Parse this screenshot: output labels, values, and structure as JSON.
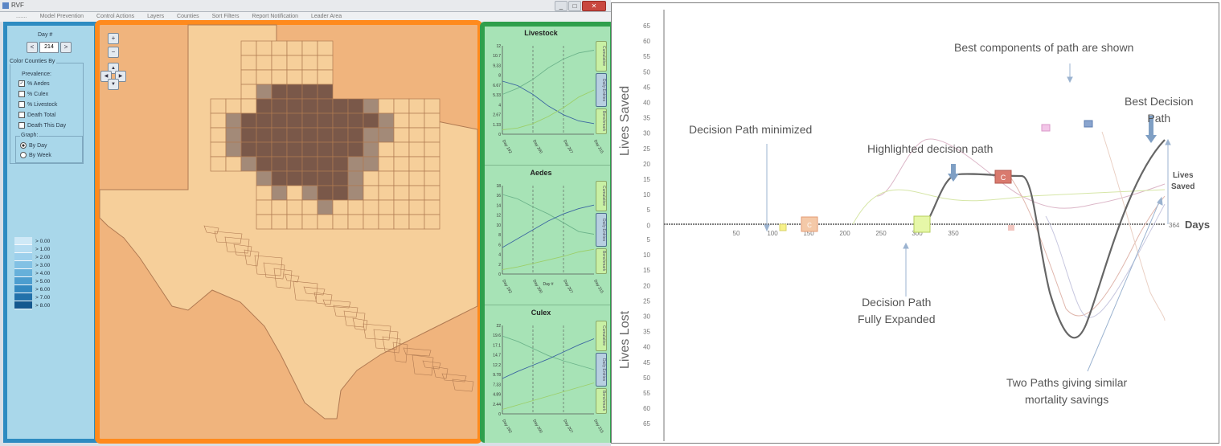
{
  "window": {
    "title": "RVF",
    "buttons": [
      "_",
      "□",
      "✕"
    ]
  },
  "menu": [
    ".......",
    "Model Prevention",
    "Control Actions",
    "Layers",
    "Counties",
    "Sort Filters",
    "Report Notification",
    "Leader Area"
  ],
  "controls": {
    "day_label": "Day #",
    "day_value": "214",
    "prev": "<",
    "next": ">",
    "color_group": "Color Counties By",
    "prevalence_label": "Prevalence:",
    "options": [
      {
        "label": "% Aedes",
        "checked": true
      },
      {
        "label": "% Culex",
        "checked": false
      },
      {
        "label": "% Livestock",
        "checked": false
      },
      {
        "label": "Death Total",
        "checked": false
      },
      {
        "label": "Death This Day",
        "checked": false
      }
    ],
    "graph_label": "Graph:",
    "graph_options": [
      {
        "label": "By Day",
        "selected": true
      },
      {
        "label": "By Week",
        "selected": false
      }
    ],
    "legend": [
      {
        "label": "> 0.00",
        "color": "#cfe9f7"
      },
      {
        "label": "> 1.00",
        "color": "#b6ddf2"
      },
      {
        "label": "> 2.00",
        "color": "#9dd0ec"
      },
      {
        "label": "> 3.00",
        "color": "#82c1e4"
      },
      {
        "label": "> 4.00",
        "color": "#66b0da"
      },
      {
        "label": "> 5.00",
        "color": "#4c9dcf"
      },
      {
        "label": "> 6.00",
        "color": "#3388c0"
      },
      {
        "label": "> 7.00",
        "color": "#2271aa"
      },
      {
        "label": "> 8.00",
        "color": "#15588f"
      }
    ]
  },
  "map": {
    "nav": {
      "zoom_in": "+",
      "zoom_out": "−",
      "up": "▲",
      "down": "▼",
      "left": "◀",
      "right": "▶"
    },
    "colors": {
      "background": "#f0b47d",
      "state": "#f6cf9a",
      "border": "#b07a52",
      "high": "#7a5849",
      "mid": "#a38a78",
      "low": "#c8b29f"
    }
  },
  "graphs": [
    {
      "title": "Livestock",
      "yticks": [
        "12",
        "10.7",
        "9.33",
        "8",
        "6.67",
        "5.33",
        "4",
        "2.67",
        "1.33",
        "0"
      ],
      "xticks": [
        "Day 192",
        "Day 200",
        "Day 207",
        "Day 215"
      ],
      "xlabel": "",
      "tabs": [
        "Cumulative",
        "Daily Entries",
        "Benchmark"
      ]
    },
    {
      "title": "Aedes",
      "yticks": [
        "18",
        "16",
        "14",
        "12",
        "10",
        "8",
        "6",
        "4",
        "2",
        "0"
      ],
      "xticks": [
        "Day 192",
        "Day 200",
        "Day 207",
        "Day 215"
      ],
      "xlabel": "Day #",
      "tabs": [
        "Cumulative",
        "Daily Entries",
        "Benchmark"
      ]
    },
    {
      "title": "Culex",
      "yticks": [
        "22",
        "19.6",
        "17.1",
        "14.7",
        "12.2",
        "9.78",
        "7.33",
        "4.89",
        "2.44",
        "0"
      ],
      "xticks": [
        "Day 192",
        "Day 200",
        "Day 207",
        "Day 215"
      ],
      "xlabel": "",
      "tabs": [
        "Cumulative",
        "Daily Entries",
        "Benchmark"
      ]
    }
  ],
  "figure": {
    "ylabel_top": "Lives Saved",
    "ylabel_bottom": "Lives Lost",
    "xlabel": "Days",
    "end_tick": "364",
    "side_label": "Lives\nSaved",
    "yticks_top": [
      "65",
      "60",
      "55",
      "50",
      "45",
      "40",
      "35",
      "30",
      "25",
      "20",
      "15",
      "10",
      "5",
      "0"
    ],
    "yticks_bottom": [
      "5",
      "10",
      "15",
      "20",
      "25",
      "30",
      "35",
      "40",
      "45",
      "50",
      "55",
      "60",
      "65"
    ],
    "xticks": [
      "50",
      "100",
      "150",
      "200",
      "250",
      "300",
      "350"
    ],
    "annotations": {
      "best_components": "Best components of path are shown",
      "best_decision": "Best Decision\nPath",
      "minimized": "Decision Path minimized",
      "highlighted": "Highlighted decision path",
      "fully_expanded": "Decision Path\nFully Expanded",
      "two_paths": "Two Paths giving similar\nmortality savings"
    },
    "markers": [
      {
        "label": "C",
        "color": "#d97a6e"
      },
      {
        "label": "C",
        "color": "#f2b48e"
      }
    ]
  }
}
